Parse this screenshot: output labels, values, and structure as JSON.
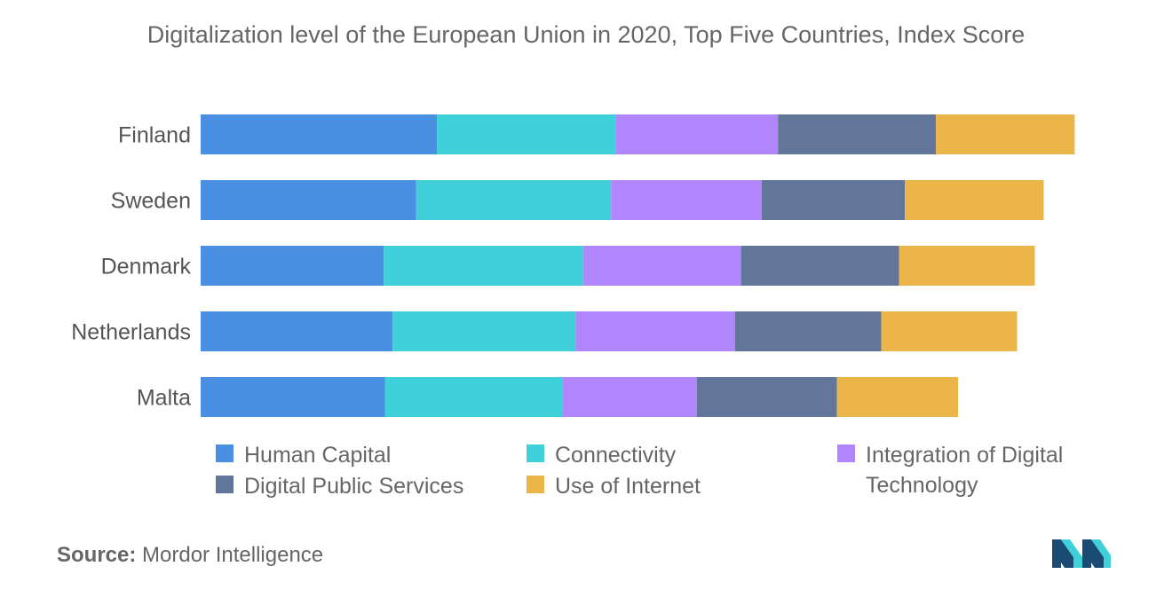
{
  "chart_data": {
    "type": "bar",
    "orientation": "horizontal",
    "stacked": true,
    "title": "Digitalization level of the European Union in 2020, Top Five Countries, Index Score",
    "categories": [
      "Finland",
      "Sweden",
      "Denmark",
      "Netherlands",
      "Malta"
    ],
    "series": [
      {
        "name": "Human Capital",
        "color": "#4a90e2",
        "values": [
          16.0,
          14.6,
          12.4,
          13.0,
          12.5
        ]
      },
      {
        "name": "Connectivity",
        "color": "#3fd0da",
        "values": [
          12.1,
          13.2,
          13.5,
          12.4,
          12.0
        ]
      },
      {
        "name": "Integration of Digital Technology",
        "color": "#b185fb",
        "values": [
          11.0,
          10.2,
          10.7,
          10.8,
          9.1
        ]
      },
      {
        "name": "Digital Public Services",
        "color": "#627699",
        "values": [
          10.7,
          9.7,
          10.7,
          9.9,
          9.5
        ]
      },
      {
        "name": "Use of Internet",
        "color": "#ebb54a",
        "values": [
          9.4,
          9.4,
          9.2,
          9.2,
          8.2
        ]
      }
    ],
    "xlim": [
      0,
      70
    ],
    "grid": false,
    "legend_position": "bottom"
  },
  "source": {
    "label": "Source:",
    "text": "Mordor Intelligence"
  },
  "logo": {
    "icon": "mordor-intelligence-logo-icon",
    "colors": [
      "#1b4a73",
      "#3fd0da"
    ]
  }
}
